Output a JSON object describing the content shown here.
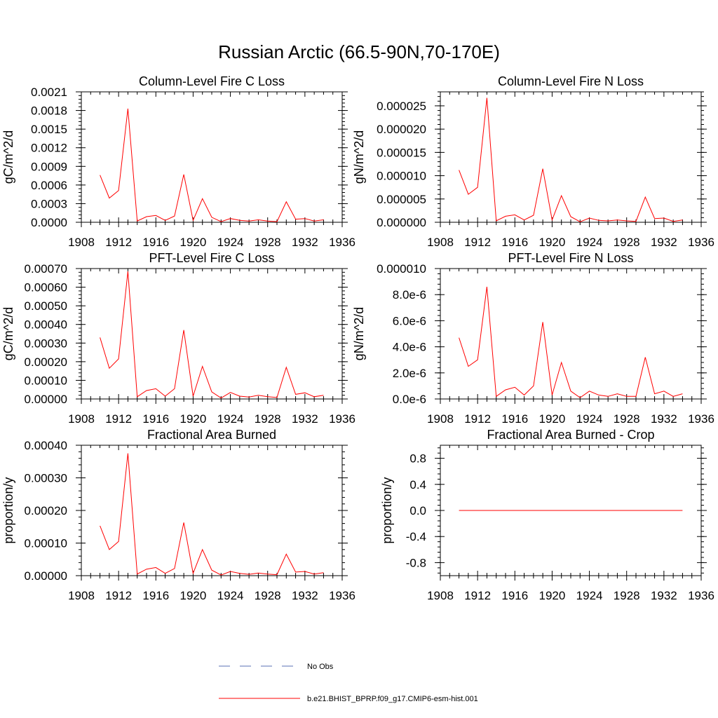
{
  "figure": {
    "title": "Russian Arctic (66.5-90N,70-170E)",
    "legend": [
      {
        "label": "No Obs",
        "color": "#5a6fb4",
        "style": "dashed"
      },
      {
        "label": "b.e21.BHIST_BPRP.f09_g17.CMIP6-esm-hist.001",
        "color": "#ff0000",
        "style": "solid"
      }
    ]
  },
  "chart_data": [
    {
      "type": "line",
      "title": "Column-Level Fire C Loss",
      "ylabel": "gC/m^2/d",
      "xlim": [
        1908,
        1936
      ],
      "xticks": [
        "1908",
        "1912",
        "1916",
        "1920",
        "1924",
        "1928",
        "1932",
        "1936"
      ],
      "ylim": [
        0,
        0.0021
      ],
      "yticks": [
        "0.0000",
        "0.0003",
        "0.0006",
        "0.0009",
        "0.0012",
        "0.0015",
        "0.0018",
        "0.0021"
      ],
      "series": [
        {
          "color": "#ff0000",
          "x": [
            1910,
            1911,
            1912,
            1913,
            1914,
            1915,
            1916,
            1917,
            1918,
            1919,
            1920,
            1921,
            1922,
            1923,
            1924,
            1925,
            1926,
            1927,
            1928,
            1929,
            1930,
            1931,
            1932,
            1933,
            1934
          ],
          "values": [
            0.00076,
            0.00039,
            0.00051,
            0.00183,
            2e-05,
            9e-05,
            0.00011,
            3e-05,
            0.0001,
            0.00077,
            3e-05,
            0.00038,
            8e-05,
            1e-05,
            6e-05,
            3e-05,
            2e-05,
            4e-05,
            2e-05,
            1e-05,
            0.00033,
            5e-05,
            6e-05,
            2e-05,
            4e-05
          ]
        }
      ]
    },
    {
      "type": "line",
      "title": "Column-Level Fire N Loss",
      "ylabel": "gN/m^2/d",
      "xlim": [
        1908,
        1936
      ],
      "xticks": [
        "1908",
        "1912",
        "1916",
        "1920",
        "1924",
        "1928",
        "1932",
        "1936"
      ],
      "ylim": [
        0,
        2.8e-05
      ],
      "yticks": [
        "0.000000",
        "0.000005",
        "0.000010",
        "0.000015",
        "0.000020",
        "0.000025"
      ],
      "ytickvalues": [
        0,
        5e-06,
        1e-05,
        1.5e-05,
        2e-05,
        2.5e-05
      ],
      "series": [
        {
          "color": "#ff0000",
          "x": [
            1910,
            1911,
            1912,
            1913,
            1914,
            1915,
            1916,
            1917,
            1918,
            1919,
            1920,
            1921,
            1922,
            1923,
            1924,
            1925,
            1926,
            1927,
            1928,
            1929,
            1930,
            1931,
            1932,
            1933,
            1934
          ],
          "values": [
            1.12e-05,
            6e-06,
            7.5e-06,
            2.67e-05,
            3e-07,
            1.3e-06,
            1.6e-06,
            5e-07,
            1.5e-06,
            1.15e-05,
            5e-07,
            5.7e-06,
            1.2e-06,
            1e-07,
            9e-07,
            4e-07,
            3e-07,
            5e-07,
            3e-07,
            2e-07,
            5.4e-06,
            8e-07,
            9e-07,
            2e-07,
            5e-07
          ]
        }
      ]
    },
    {
      "type": "line",
      "title": "PFT-Level Fire C Loss",
      "ylabel": "gC/m^2/d",
      "xlim": [
        1908,
        1936
      ],
      "xticks": [
        "1908",
        "1912",
        "1916",
        "1920",
        "1924",
        "1928",
        "1932",
        "1936"
      ],
      "ylim": [
        0,
        0.0007
      ],
      "yticks": [
        "0.00000",
        "0.00010",
        "0.00020",
        "0.00030",
        "0.00040",
        "0.00050",
        "0.00060",
        "0.00070"
      ],
      "series": [
        {
          "color": "#ff0000",
          "x": [
            1910,
            1911,
            1912,
            1913,
            1914,
            1915,
            1916,
            1917,
            1918,
            1919,
            1920,
            1921,
            1922,
            1923,
            1924,
            1925,
            1926,
            1927,
            1928,
            1929,
            1930,
            1931,
            1932,
            1933,
            1934
          ],
          "values": [
            0.00033,
            0.000165,
            0.000215,
            0.000685,
            1.2e-05,
            4.5e-05,
            5.5e-05,
            1.5e-05,
            5.5e-05,
            0.00037,
            1.5e-05,
            0.000175,
            3.8e-05,
            5e-06,
            3.5e-05,
            1.5e-05,
            1e-05,
            2e-05,
            1.2e-05,
            8e-06,
            0.00017,
            2.5e-05,
            3.3e-05,
            1.2e-05,
            2e-05
          ]
        }
      ]
    },
    {
      "type": "line",
      "title": "PFT-Level Fire N Loss",
      "ylabel": "gN/m^2/d",
      "xlim": [
        1908,
        1936
      ],
      "xticks": [
        "1908",
        "1912",
        "1916",
        "1920",
        "1924",
        "1928",
        "1932",
        "1936"
      ],
      "ylim": [
        0,
        1e-05
      ],
      "yticks": [
        "0.0e-6",
        "2.0e-6",
        "4.0e-6",
        "6.0e-6",
        "8.0e-6",
        "0.000010"
      ],
      "series": [
        {
          "color": "#ff0000",
          "x": [
            1910,
            1911,
            1912,
            1913,
            1914,
            1915,
            1916,
            1917,
            1918,
            1919,
            1920,
            1921,
            1922,
            1923,
            1924,
            1925,
            1926,
            1927,
            1928,
            1929,
            1930,
            1931,
            1932,
            1933,
            1934
          ],
          "values": [
            4.7e-06,
            2.5e-06,
            3e-06,
            8.6e-06,
            2e-07,
            7e-07,
            9e-07,
            3e-07,
            1e-06,
            5.9e-06,
            3e-07,
            2.8e-06,
            6e-07,
            1e-07,
            6e-07,
            3e-07,
            2e-07,
            4e-07,
            2e-07,
            2e-07,
            3.2e-06,
            4e-07,
            6e-07,
            2e-07,
            4e-07
          ]
        }
      ]
    },
    {
      "type": "line",
      "title": "Fractional Area Burned",
      "ylabel": "proportion/y",
      "xlim": [
        1908,
        1936
      ],
      "xticks": [
        "1908",
        "1912",
        "1916",
        "1920",
        "1924",
        "1928",
        "1932",
        "1936"
      ],
      "ylim": [
        0,
        0.0004
      ],
      "yticks": [
        "0.00000",
        "0.00010",
        "0.00020",
        "0.00030",
        "0.00040"
      ],
      "series": [
        {
          "color": "#ff0000",
          "x": [
            1910,
            1911,
            1912,
            1913,
            1914,
            1915,
            1916,
            1917,
            1918,
            1919,
            1920,
            1921,
            1922,
            1923,
            1924,
            1925,
            1926,
            1927,
            1928,
            1929,
            1930,
            1931,
            1932,
            1933,
            1934
          ],
          "values": [
            0.000153,
            8e-05,
            0.000105,
            0.000375,
            5e-06,
            2e-05,
            2.5e-05,
            7e-06,
            2.2e-05,
            0.000163,
            7e-06,
            8e-05,
            1.7e-05,
            2e-06,
            1.3e-05,
            7e-06,
            4e-06,
            8e-06,
            5e-06,
            3e-06,
            6.6e-05,
            1.1e-05,
            1.3e-05,
            5e-06,
            9e-06
          ]
        }
      ]
    },
    {
      "type": "line",
      "title": "Fractional Area Burned - Crop",
      "ylabel": "proportion/y",
      "xlim": [
        1908,
        1936
      ],
      "xticks": [
        "1908",
        "1912",
        "1916",
        "1920",
        "1924",
        "1928",
        "1932",
        "1936"
      ],
      "ylim": [
        -1,
        1
      ],
      "yticks": [
        "-0.8",
        "-0.4",
        "0.0",
        "0.4",
        "0.8"
      ],
      "ytickvalues": [
        -0.8,
        -0.4,
        0,
        0.4,
        0.8
      ],
      "series": [
        {
          "color": "#ff0000",
          "x": [
            1910,
            1911,
            1912,
            1913,
            1914,
            1915,
            1916,
            1917,
            1918,
            1919,
            1920,
            1921,
            1922,
            1923,
            1924,
            1925,
            1926,
            1927,
            1928,
            1929,
            1930,
            1931,
            1932,
            1933,
            1934
          ],
          "values": [
            0,
            0,
            0,
            0,
            0,
            0,
            0,
            0,
            0,
            0,
            0,
            0,
            0,
            0,
            0,
            0,
            0,
            0,
            0,
            0,
            0,
            0,
            0,
            0,
            0
          ]
        }
      ]
    }
  ]
}
